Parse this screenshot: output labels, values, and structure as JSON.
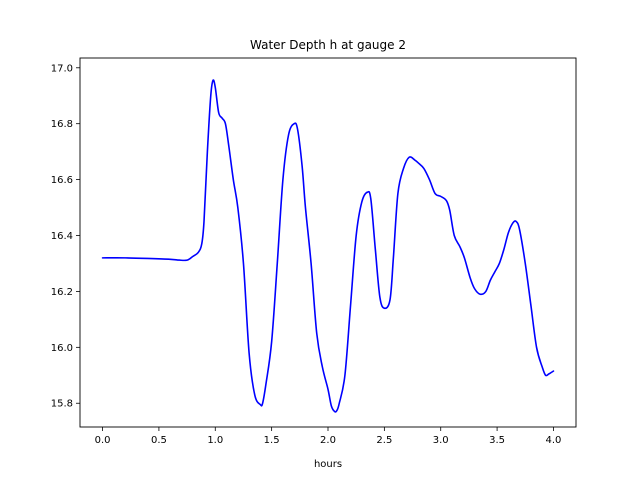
{
  "chart_data": {
    "type": "line",
    "title": "Water Depth h at gauge 2",
    "xlabel": "hours",
    "ylabel": "",
    "xlim": [
      -0.2,
      4.2
    ],
    "ylim": [
      15.715,
      17.035
    ],
    "grid": false,
    "xticks": [
      0.0,
      0.5,
      1.0,
      1.5,
      2.0,
      2.5,
      3.0,
      3.5,
      4.0
    ],
    "xtick_labels": [
      "0.0",
      "0.5",
      "1.0",
      "1.5",
      "2.0",
      "2.5",
      "3.0",
      "3.5",
      "4.0"
    ],
    "yticks": [
      15.8,
      16.0,
      16.2,
      16.4,
      16.6,
      16.8,
      17.0
    ],
    "ytick_labels": [
      "15.8",
      "16.0",
      "16.2",
      "16.4",
      "16.6",
      "16.8",
      "17.0"
    ],
    "series": [
      {
        "color": "#0000ff",
        "x": [
          0.0,
          0.2,
          0.4,
          0.6,
          0.68,
          0.75,
          0.8,
          0.85,
          0.88,
          0.9,
          0.93,
          0.96,
          0.98,
          1.0,
          1.03,
          1.06,
          1.09,
          1.12,
          1.16,
          1.2,
          1.25,
          1.3,
          1.35,
          1.4,
          1.42,
          1.45,
          1.5,
          1.55,
          1.6,
          1.65,
          1.7,
          1.73,
          1.77,
          1.8,
          1.85,
          1.9,
          1.95,
          2.0,
          2.03,
          2.06,
          2.08,
          2.1,
          2.15,
          2.2,
          2.25,
          2.3,
          2.35,
          2.38,
          2.42,
          2.46,
          2.5,
          2.55,
          2.58,
          2.62,
          2.67,
          2.72,
          2.77,
          2.8,
          2.85,
          2.9,
          2.95,
          3.0,
          3.05,
          3.08,
          3.12,
          3.17,
          3.21,
          3.26,
          3.3,
          3.35,
          3.4,
          3.44,
          3.48,
          3.52,
          3.56,
          3.6,
          3.64,
          3.67,
          3.7,
          3.75,
          3.8,
          3.85,
          3.9,
          3.93,
          3.96,
          4.0
        ],
        "y": [
          16.32,
          16.32,
          16.318,
          16.315,
          16.312,
          16.312,
          16.325,
          16.34,
          16.37,
          16.45,
          16.7,
          16.9,
          16.955,
          16.93,
          16.84,
          16.82,
          16.8,
          16.72,
          16.6,
          16.5,
          16.3,
          15.98,
          15.83,
          15.795,
          15.8,
          15.87,
          16.02,
          16.3,
          16.6,
          16.76,
          16.8,
          16.78,
          16.65,
          16.5,
          16.3,
          16.05,
          15.93,
          15.85,
          15.79,
          15.77,
          15.775,
          15.8,
          15.9,
          16.15,
          16.4,
          16.52,
          16.555,
          16.53,
          16.35,
          16.18,
          16.14,
          16.17,
          16.32,
          16.55,
          16.64,
          16.68,
          16.67,
          16.66,
          16.64,
          16.6,
          16.55,
          16.54,
          16.525,
          16.49,
          16.4,
          16.36,
          16.32,
          16.25,
          16.21,
          16.19,
          16.2,
          16.24,
          16.27,
          16.3,
          16.35,
          16.41,
          16.445,
          16.45,
          16.42,
          16.3,
          16.15,
          16.0,
          15.93,
          15.9,
          15.905,
          15.915
        ]
      }
    ]
  }
}
